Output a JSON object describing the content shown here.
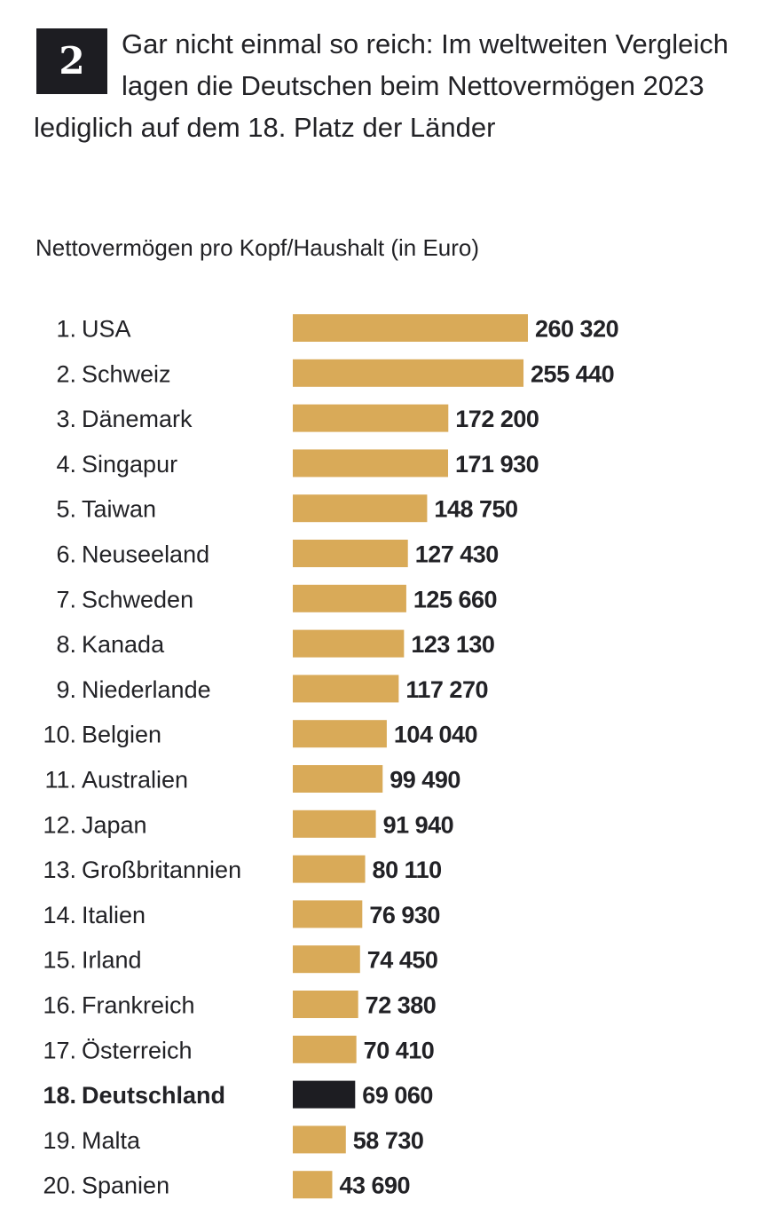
{
  "headline": {
    "badge": "2",
    "text": "Gar nicht einmal so reich: Im weltweiten Vergleich lagen die Deutschen beim Nettovermögen 2023 lediglich auf dem 18. Platz der Länder"
  },
  "chart_data": {
    "type": "bar",
    "orientation": "horizontal",
    "subtitle": "Nettovermögen pro Kopf/Haushalt (in Euro)",
    "categories": [
      "1. USA",
      "2. Schweiz",
      "3. Dänemark",
      "4. Singapur",
      "5. Taiwan",
      "6. Neuseeland",
      "7. Schweden",
      "8. Kanada",
      "9. Niederlande",
      "10. Belgien",
      "11. Australien",
      "12. Japan",
      "13. Großbritannien",
      "14. Italien",
      "15. Irland",
      "16. Frankreich",
      "17. Österreich",
      "18. Deutschland",
      "19. Malta",
      "20. Spanien"
    ],
    "values": [
      260320,
      255440,
      172200,
      171930,
      148750,
      127430,
      125660,
      123130,
      117270,
      104040,
      99490,
      91940,
      80110,
      76930,
      74450,
      72380,
      70410,
      69060,
      58730,
      43690
    ],
    "value_labels": [
      "260 320",
      "255 440",
      "172 200",
      "171 930",
      "148 750",
      "127 430",
      "125 660",
      "123 130",
      "117 270",
      "104 040",
      "99 490",
      "91 940",
      "80 110",
      "76 930",
      "74 450",
      "72 380",
      "70 410",
      "69 060",
      "58 730",
      "43 690"
    ],
    "highlight_index": 17,
    "colors": {
      "bar": "#d9aa58",
      "highlight": "#1d1d22"
    },
    "grid": false,
    "legend": "none"
  }
}
